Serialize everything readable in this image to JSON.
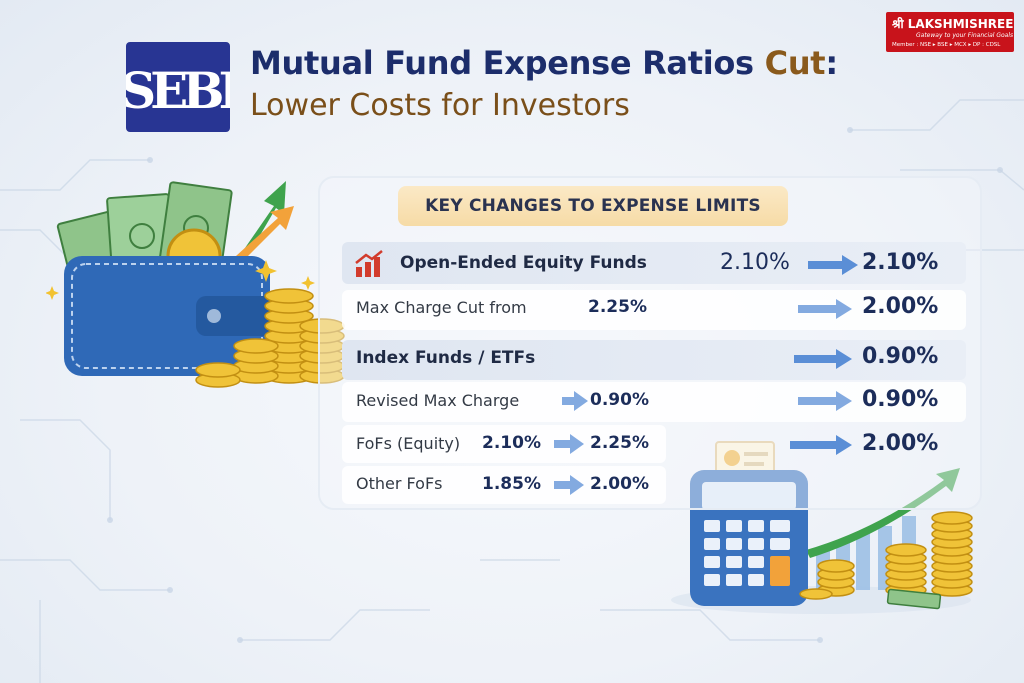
{
  "header": {
    "title_main": "Mutual Fund Expense Ratios",
    "title_accent": "Cut",
    "title_colon": ":",
    "subtitle": "Lower Costs for Investors"
  },
  "logo": {
    "letters": "SEBI"
  },
  "brand": {
    "name": "श्री LAKSHMISHREE",
    "tagline": "Gateway to your Financial Goals",
    "members": "Member : NSE ▸ BSE ▸ MCX ▸ DP : CDSL"
  },
  "panel": {
    "title": "KEY CHANGES TO EXPENSE LIMITS",
    "rows": [
      {
        "label": "Open-Ended Equity Funds",
        "from": "2.10%",
        "to": "2.10%"
      },
      {
        "label": "Max Charge Cut from",
        "from": "2.25%",
        "to": "2.00%"
      },
      {
        "label": "Index Funds / ETFs",
        "to": "0.90%"
      },
      {
        "label": "Revised Max Charge",
        "from": "0.90%",
        "to": "0.90%"
      },
      {
        "label": "FoFs (Equity)",
        "from": "2.10%",
        "mid": "2.25%",
        "to": "2.00%"
      },
      {
        "label": "Other FoFs",
        "from": "1.85%",
        "mid": "2.00%"
      }
    ]
  },
  "colors": {
    "navy": "#1c2d6b",
    "brown": "#7a4f1a",
    "brand_red": "#c8131b",
    "highlight": "#f6dba6",
    "arrow_blue": "#5a8ed6",
    "coin_gold": "#e6b422",
    "growth_green": "#3fa34d"
  }
}
